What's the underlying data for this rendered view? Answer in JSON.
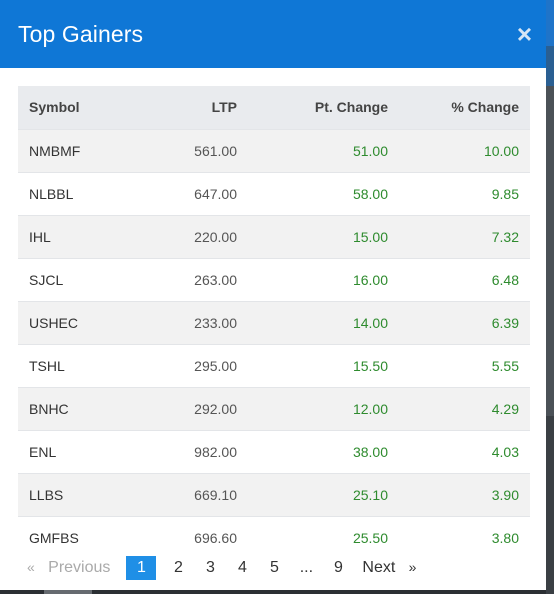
{
  "modal": {
    "title": "Top Gainers",
    "close_symbol": "×"
  },
  "table": {
    "headers": {
      "symbol": "Symbol",
      "ltp": "LTP",
      "pt_change": "Pt. Change",
      "pct_change": "% Change"
    },
    "rows": [
      {
        "symbol": "NMBMF",
        "ltp": "561.00",
        "pt_change": "51.00",
        "pct_change": "10.00"
      },
      {
        "symbol": "NLBBL",
        "ltp": "647.00",
        "pt_change": "58.00",
        "pct_change": "9.85"
      },
      {
        "symbol": "IHL",
        "ltp": "220.00",
        "pt_change": "15.00",
        "pct_change": "7.32"
      },
      {
        "symbol": "SJCL",
        "ltp": "263.00",
        "pt_change": "16.00",
        "pct_change": "6.48"
      },
      {
        "symbol": "USHEC",
        "ltp": "233.00",
        "pt_change": "14.00",
        "pct_change": "6.39"
      },
      {
        "symbol": "TSHL",
        "ltp": "295.00",
        "pt_change": "15.50",
        "pct_change": "5.55"
      },
      {
        "symbol": "BNHC",
        "ltp": "292.00",
        "pt_change": "12.00",
        "pct_change": "4.29"
      },
      {
        "symbol": "ENL",
        "ltp": "982.00",
        "pt_change": "38.00",
        "pct_change": "4.03"
      },
      {
        "symbol": "LLBS",
        "ltp": "669.10",
        "pt_change": "25.10",
        "pct_change": "3.90"
      },
      {
        "symbol": "GMFBS",
        "ltp": "696.60",
        "pt_change": "25.50",
        "pct_change": "3.80"
      }
    ]
  },
  "pagination": {
    "prev_arrow": "«",
    "prev_label": "Previous",
    "pages": [
      "1",
      "2",
      "3",
      "4",
      "5"
    ],
    "ellipsis": "...",
    "last_page": "9",
    "next_label": "Next",
    "next_arrow": "»",
    "current_page": "1"
  },
  "colors": {
    "header_bg": "#0f77d6",
    "positive": "#2e8b2e",
    "active_page": "#1f8fe6"
  }
}
